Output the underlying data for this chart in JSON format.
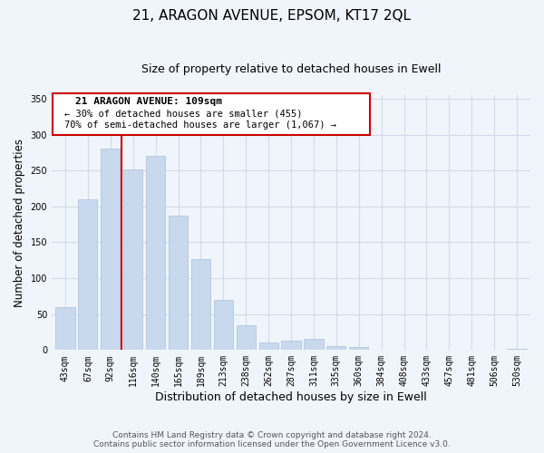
{
  "title": "21, ARAGON AVENUE, EPSOM, KT17 2QL",
  "subtitle": "Size of property relative to detached houses in Ewell",
  "xlabel": "Distribution of detached houses by size in Ewell",
  "ylabel": "Number of detached properties",
  "bar_labels": [
    "43sqm",
    "67sqm",
    "92sqm",
    "116sqm",
    "140sqm",
    "165sqm",
    "189sqm",
    "213sqm",
    "238sqm",
    "262sqm",
    "287sqm",
    "311sqm",
    "335sqm",
    "360sqm",
    "384sqm",
    "408sqm",
    "433sqm",
    "457sqm",
    "481sqm",
    "506sqm",
    "530sqm"
  ],
  "bar_values": [
    60,
    210,
    280,
    252,
    270,
    187,
    127,
    70,
    34,
    10,
    13,
    15,
    6,
    4,
    1,
    1,
    0,
    0,
    0,
    0,
    2
  ],
  "bar_color": "#c8d9ed",
  "bar_edge_color": "#a8c0de",
  "vline_color": "#cc0000",
  "vline_x_index": 2.5,
  "annotation_title": "21 ARAGON AVENUE: 109sqm",
  "annotation_line1": "← 30% of detached houses are smaller (455)",
  "annotation_line2": "70% of semi-detached houses are larger (1,067) →",
  "annotation_box_color": "#ffffff",
  "annotation_box_edge": "#cc0000",
  "ylim": [
    0,
    355
  ],
  "yticks": [
    0,
    50,
    100,
    150,
    200,
    250,
    300,
    350
  ],
  "footer_line1": "Contains HM Land Registry data © Crown copyright and database right 2024.",
  "footer_line2": "Contains public sector information licensed under the Open Government Licence v3.0.",
  "grid_color": "#d0dce8",
  "background_color": "#f0f5fb"
}
